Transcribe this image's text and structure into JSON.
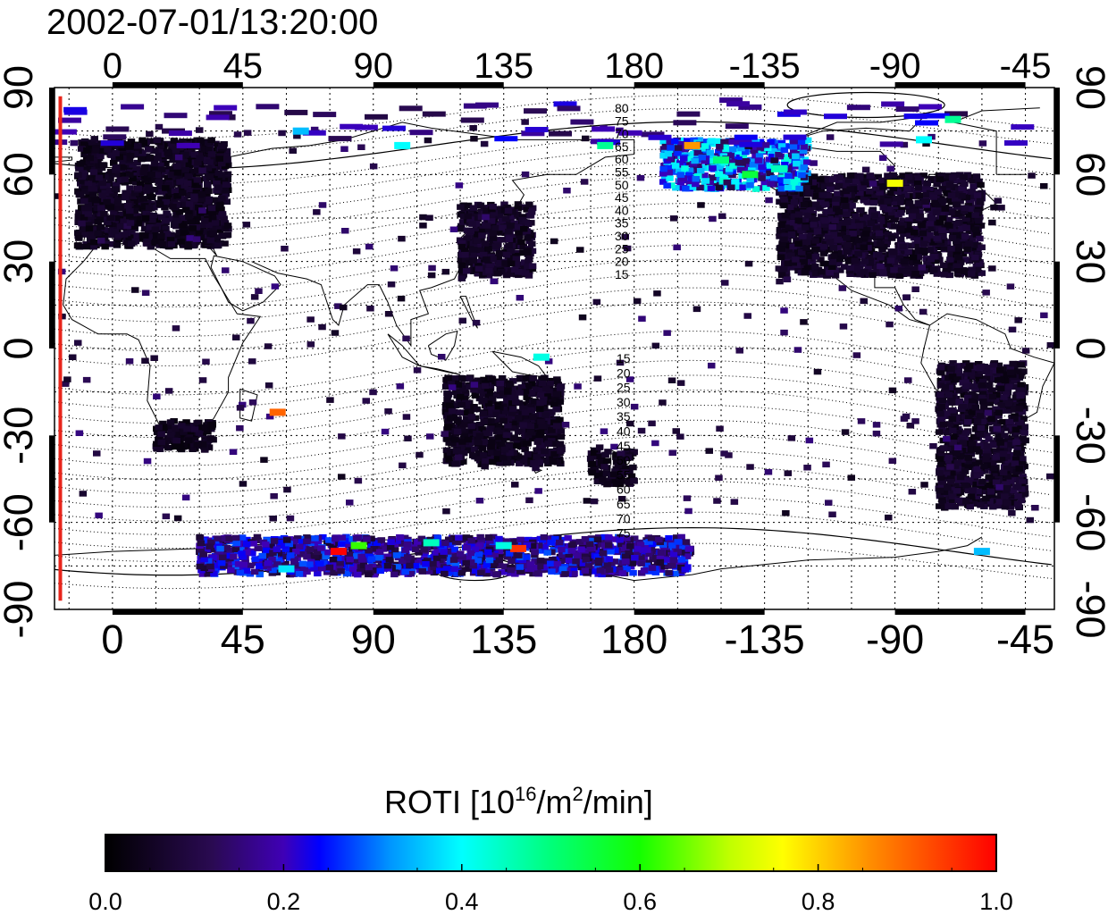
{
  "chart_data": {
    "type": "heatmap",
    "title": "2002-07-01/13:20:00",
    "projection": "cylindrical equidistant, longitude axis starts at -20 and wraps through 180 to -35",
    "x_axis": {
      "range_deg": [
        -20,
        325
      ],
      "tick_values_deg": [
        0,
        45,
        90,
        135,
        180,
        225,
        270,
        315
      ],
      "tick_labels": [
        "0",
        "45",
        "90",
        "135",
        "180",
        "-135",
        "-90",
        "-45"
      ],
      "shown_on": [
        "top",
        "bottom"
      ]
    },
    "y_axis": {
      "range_deg": [
        -90,
        90
      ],
      "tick_values_deg": [
        -90,
        -60,
        -30,
        0,
        30,
        60,
        90
      ],
      "tick_labels": [
        "-90",
        "-60",
        "-30",
        "0",
        "30",
        "60",
        "90"
      ],
      "shown_on": [
        "left",
        "right"
      ],
      "label_rotation": "rotated"
    },
    "grid": true,
    "grid_style": "dotted",
    "background_layers": [
      "coastlines",
      "magnetic latitude contours (dotted)"
    ],
    "magnetic_latitude_contour_labels": {
      "north": [
        "80",
        "75",
        "70",
        "65",
        "60",
        "55",
        "50",
        "45",
        "40",
        "35",
        "30",
        "25",
        "20",
        "15"
      ],
      "south": [
        "15",
        "20",
        "25",
        "30",
        "35",
        "40",
        "45",
        "50",
        "55",
        "60",
        "65",
        "70",
        "75"
      ]
    },
    "terminator_line": {
      "lon_deg": -18,
      "color": "#e8251b"
    },
    "colorbar": {
      "label_main": "ROTI  [10",
      "label_sup1": "16",
      "label_mid": "/m",
      "label_sup2": "2",
      "label_end": "/min]",
      "min": 0.0,
      "max": 1.0,
      "tick_values": [
        0.0,
        0.2,
        0.4,
        0.6,
        0.8,
        1.0
      ],
      "tick_labels": [
        "0.0",
        "0.2",
        "0.4",
        "0.6",
        "0.8",
        "1.0"
      ],
      "colormap_stops": [
        {
          "v": 0.0,
          "color": "#000000"
        },
        {
          "v": 0.12,
          "color": "#2a0a52"
        },
        {
          "v": 0.2,
          "color": "#3f00b6"
        },
        {
          "v": 0.24,
          "color": "#0000ff"
        },
        {
          "v": 0.32,
          "color": "#0096ff"
        },
        {
          "v": 0.4,
          "color": "#00ffff"
        },
        {
          "v": 0.5,
          "color": "#00ff7a"
        },
        {
          "v": 0.6,
          "color": "#14ff00"
        },
        {
          "v": 0.7,
          "color": "#bfff00"
        },
        {
          "v": 0.76,
          "color": "#ffff00"
        },
        {
          "v": 0.86,
          "color": "#ff8c00"
        },
        {
          "v": 1.0,
          "color": "#ff0000"
        }
      ]
    },
    "data_clusters": [
      {
        "region": "Europe",
        "lon_range": [
          -12,
          40
        ],
        "lat_range": [
          35,
          72
        ],
        "roti": 0.05
      },
      {
        "region": "East Asia / Japan",
        "lon_range": [
          120,
          145
        ],
        "lat_range": [
          25,
          50
        ],
        "roti": 0.06
      },
      {
        "region": "North America",
        "lon_range": [
          -130,
          -60
        ],
        "lat_range": [
          25,
          60
        ],
        "roti": 0.06
      },
      {
        "region": "Alaska / northern Canada",
        "lon_range": [
          -170,
          -120
        ],
        "lat_range": [
          55,
          72
        ],
        "roti": 0.3
      },
      {
        "region": "South Africa",
        "lon_range": [
          15,
          35
        ],
        "lat_range": [
          -35,
          -25
        ],
        "roti": 0.05
      },
      {
        "region": "Australia",
        "lon_range": [
          115,
          155
        ],
        "lat_range": [
          -40,
          -10
        ],
        "roti": 0.05
      },
      {
        "region": "New Zealand",
        "lon_range": [
          165,
          180
        ],
        "lat_range": [
          -47,
          -35
        ],
        "roti": 0.05
      },
      {
        "region": "South America",
        "lon_range": [
          -75,
          -45
        ],
        "lat_range": [
          -55,
          -5
        ],
        "roti": 0.06
      },
      {
        "region": "Antarctic coast",
        "lon_range": [
          30,
          200
        ],
        "lat_range": [
          -78,
          -65
        ],
        "roti": 0.2
      }
    ],
    "highlight_points": [
      {
        "lon": -160,
        "lat": 70,
        "roti": 0.85
      },
      {
        "lon": -150,
        "lat": 65,
        "roti": 0.5
      },
      {
        "lon": -140,
        "lat": 60,
        "roti": 0.55
      },
      {
        "lon": -130,
        "lat": 62,
        "roti": 0.45
      },
      {
        "lon": -90,
        "lat": 57,
        "roti": 0.75
      },
      {
        "lon": -80,
        "lat": 72,
        "roti": 0.4
      },
      {
        "lon": 57,
        "lat": -22,
        "roti": 0.9
      },
      {
        "lon": 78,
        "lat": -70,
        "roti": 1.0
      },
      {
        "lon": 85,
        "lat": -68,
        "roti": 0.62
      },
      {
        "lon": 110,
        "lat": -67,
        "roti": 0.45
      },
      {
        "lon": 140,
        "lat": -69,
        "roti": 0.95
      },
      {
        "lon": 135,
        "lat": -68,
        "roti": 0.42
      },
      {
        "lon": 60,
        "lat": -76,
        "roti": 0.38
      },
      {
        "lon": 148,
        "lat": -3,
        "roti": 0.42
      },
      {
        "lon": 170,
        "lat": 70,
        "roti": 0.48
      },
      {
        "lon": -70,
        "lat": 79,
        "roti": 0.48
      },
      {
        "lon": 100,
        "lat": 70,
        "roti": 0.4
      },
      {
        "lon": 65,
        "lat": 75,
        "roti": 0.35
      },
      {
        "lon": -60,
        "lat": -70,
        "roti": 0.35
      }
    ]
  }
}
